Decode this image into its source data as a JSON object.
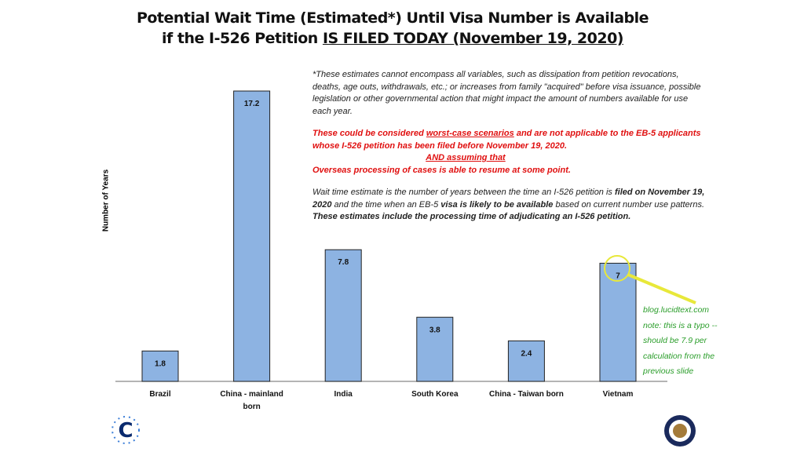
{
  "chart_data": {
    "type": "bar",
    "title": "Potential Wait Time (Estimated*) Until Visa Number is Available",
    "subtitle_prefix": "if the I-526 Petition ",
    "subtitle_underlined": "IS FILED TODAY (November 19, 2020)",
    "ylabel": "Number of Years",
    "xlabel": "",
    "ylim": [
      0,
      18
    ],
    "grid": false,
    "categories": [
      "Brazil",
      "China - mainland born",
      "India",
      "South Korea",
      "China - Taiwan born",
      "Vietnam"
    ],
    "values": [
      1.8,
      17.2,
      7.8,
      3.8,
      2.4,
      7
    ],
    "value_labels": [
      "1.8",
      "17.2",
      "7.8",
      "3.8",
      "2.4",
      "7"
    ],
    "bar_color": "#8db3e2"
  },
  "notes": {
    "p1": "*These estimates cannot encompass all variables, such as dissipation from petition revocations, deaths, age outs, withdrawals, etc.; or increases from family \"acquired\" before visa issuance, possible legislation or other governmental action that might impact the amount of numbers available for use each year.",
    "red1a": "These could be considered ",
    "red1u": "worst-case scenarios",
    "red1b": " and are not applicable to the EB-5 applicants whose I-526 petition has been filed before November 19, 2020.",
    "red2": "AND assuming that",
    "red3": "Overseas processing of cases is able to resume at some point.",
    "p3a": "Wait time estimate is the number of years between the time an I-526 petition is ",
    "p3b": "filed on November 19, 2020",
    "p3c": " and the time when an EB-5 ",
    "p3d": "visa is likely to be available",
    "p3e": " based on current number use patterns. ",
    "p3f": "These estimates include the processing time of adjudicating an I-526 petition."
  },
  "annotation": {
    "lines": [
      "blog.lucidtext.com",
      "note: this is a typo --",
      "should be 7.9 per",
      "calculation from the",
      "previous slide"
    ],
    "color": "#2a9d2a",
    "highlight": "#e8e83a"
  }
}
